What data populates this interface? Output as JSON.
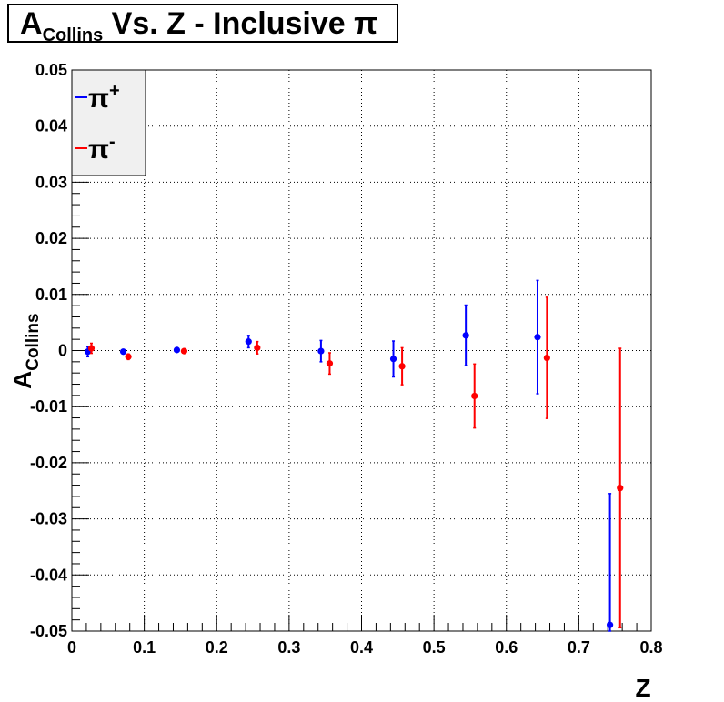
{
  "title": {
    "main": "A",
    "sub": "Collins",
    "rest": " Vs. Z - Inclusive π"
  },
  "chart_data": {
    "type": "scatter",
    "title": "A_Collins Vs. Z - Inclusive π",
    "xlabel": "Z",
    "ylabel_main": "A",
    "ylabel_sub": "Collins",
    "xlim": [
      0,
      0.8
    ],
    "ylim": [
      -0.05,
      0.05
    ],
    "x_ticks": [
      0,
      0.1,
      0.2,
      0.3,
      0.4,
      0.5,
      0.6,
      0.7,
      0.8
    ],
    "x_tick_labels": [
      "0",
      "0.1",
      "0.2",
      "0.3",
      "0.4",
      "0.5",
      "0.6",
      "0.7",
      "0.8"
    ],
    "y_ticks": [
      -0.05,
      -0.04,
      -0.03,
      -0.02,
      -0.01,
      0,
      0.01,
      0.02,
      0.03,
      0.04,
      0.05
    ],
    "y_tick_labels": [
      "-0.05",
      "-0.04",
      "-0.03",
      "-0.02",
      "-0.01",
      "0",
      "0.01",
      "0.02",
      "0.03",
      "0.04",
      "0.05"
    ],
    "grid": true,
    "legend_position": "top-left",
    "series": [
      {
        "name": "π+",
        "legend_main": "π",
        "legend_sup": "+",
        "color": "#0000ff",
        "x": [
          0.022,
          0.071,
          0.145,
          0.244,
          0.344,
          0.444,
          0.544,
          0.643,
          0.743
        ],
        "y": [
          -0.0002,
          -0.0002,
          0.0001,
          0.0016,
          -0.0001,
          -0.0015,
          0.0027,
          0.0024,
          -0.0489
        ],
        "yerr": [
          0.0009,
          0.0004,
          0.0003,
          0.0011,
          0.0019,
          0.0032,
          0.0054,
          0.0101,
          0.0234
        ]
      },
      {
        "name": "π-",
        "legend_main": "π",
        "legend_sup": "-",
        "color": "#ff0000",
        "x": [
          0.027,
          0.078,
          0.155,
          0.256,
          0.356,
          0.456,
          0.556,
          0.656,
          0.757
        ],
        "y": [
          0.0004,
          -0.0011,
          -0.0001,
          0.0005,
          -0.0023,
          -0.0028,
          -0.0081,
          -0.0013,
          -0.0245
        ],
        "yerr": [
          0.0009,
          0.0005,
          0.0003,
          0.0011,
          0.0019,
          0.0033,
          0.0057,
          0.0108,
          0.0249
        ]
      }
    ]
  }
}
